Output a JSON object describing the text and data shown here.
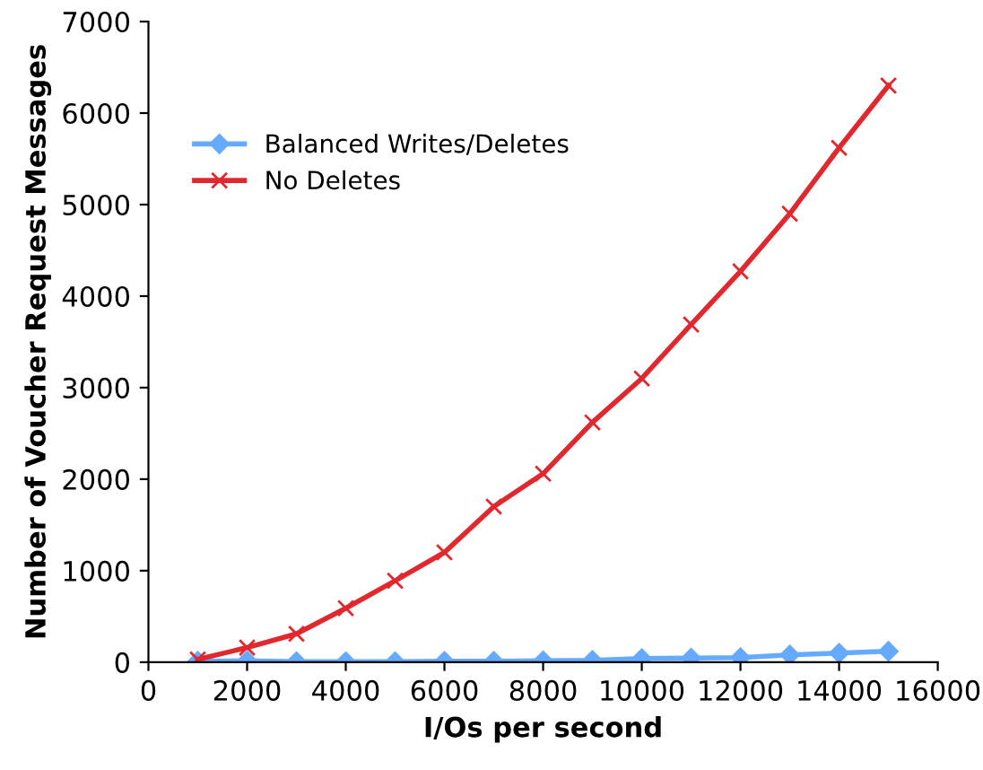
{
  "chart_data": {
    "type": "line",
    "xlabel": "I/Os per second",
    "ylabel": "Number of Voucher Request Messages",
    "x": [
      1000,
      2000,
      3000,
      4000,
      5000,
      6000,
      7000,
      8000,
      9000,
      10000,
      11000,
      12000,
      13000,
      14000,
      15000
    ],
    "series": [
      {
        "name": "Balanced Writes/Deletes",
        "color": "#66aaff",
        "marker": "diamond",
        "values": [
          10,
          15,
          5,
          5,
          5,
          10,
          10,
          15,
          20,
          40,
          45,
          50,
          80,
          100,
          120
        ]
      },
      {
        "name": "No Deletes",
        "color": "#e0282e",
        "marker": "cross",
        "values": [
          30,
          160,
          310,
          590,
          890,
          1200,
          1700,
          2060,
          2620,
          3100,
          3690,
          4270,
          4900,
          5620,
          6300
        ]
      }
    ],
    "xlim": [
      0,
      16000
    ],
    "xticks": [
      0,
      2000,
      4000,
      6000,
      8000,
      10000,
      12000,
      14000,
      16000
    ],
    "ylim": [
      0,
      7000
    ],
    "yticks": [
      0,
      1000,
      2000,
      3000,
      4000,
      5000,
      6000,
      7000
    ],
    "grid": false,
    "legend": "top left"
  }
}
